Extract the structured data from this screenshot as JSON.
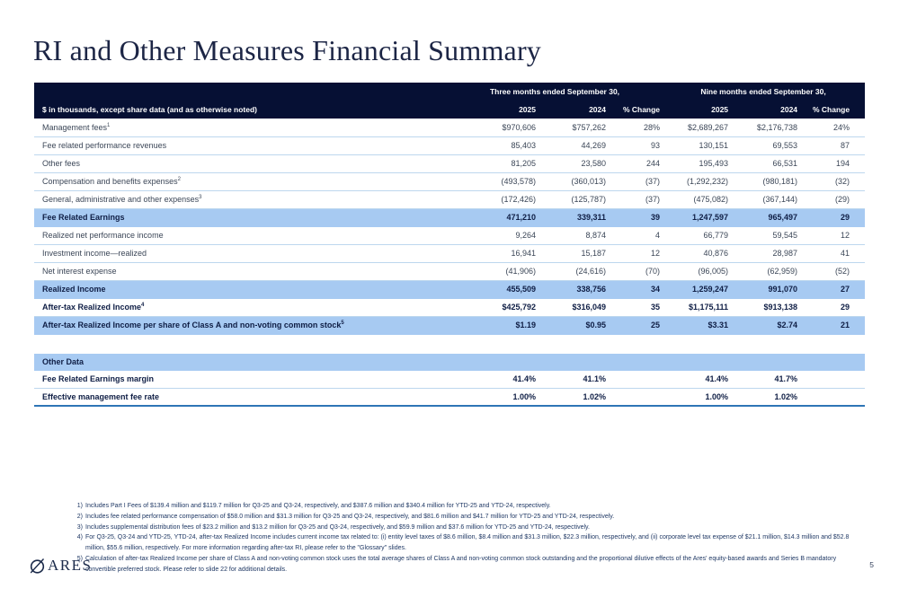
{
  "slide": {
    "title": "RI and Other Measures Financial Summary",
    "page_number": "5",
    "logo_text": "ARES"
  },
  "table": {
    "corner_label": "$ in thousands, except share data (and as otherwise noted)",
    "group_headers": [
      "Three months ended September 30,",
      "Nine months ended September 30,"
    ],
    "column_headers": [
      "2025",
      "2024",
      "% Change",
      "2025",
      "2024",
      "% Change"
    ],
    "rows": [
      {
        "label": "Management fees",
        "sup": "1",
        "style": "normal",
        "values": [
          "$970,606",
          "$757,262",
          "28%",
          "$2,689,267",
          "$2,176,738",
          "24%"
        ]
      },
      {
        "label": "Fee related performance revenues",
        "sup": "",
        "style": "normal",
        "values": [
          "85,403",
          "44,269",
          "93",
          "130,151",
          "69,553",
          "87"
        ]
      },
      {
        "label": "Other fees",
        "sup": "",
        "style": "normal",
        "values": [
          "81,205",
          "23,580",
          "244",
          "195,493",
          "66,531",
          "194"
        ]
      },
      {
        "label": "Compensation and benefits expenses",
        "sup": "2",
        "style": "normal",
        "values": [
          "(493,578)",
          "(360,013)",
          "(37)",
          "(1,292,232)",
          "(980,181)",
          "(32)"
        ]
      },
      {
        "label": "General, administrative and other expenses",
        "sup": "3",
        "style": "normal",
        "values": [
          "(172,426)",
          "(125,787)",
          "(37)",
          "(475,082)",
          "(367,144)",
          "(29)"
        ]
      },
      {
        "label": "Fee Related Earnings",
        "sup": "",
        "style": "highlight",
        "values": [
          "471,210",
          "339,311",
          "39",
          "1,247,597",
          "965,497",
          "29"
        ]
      },
      {
        "label": "Realized net performance income",
        "sup": "",
        "style": "normal",
        "values": [
          "9,264",
          "8,874",
          "4",
          "66,779",
          "59,545",
          "12"
        ]
      },
      {
        "label": "Investment income—realized",
        "sup": "",
        "style": "normal",
        "values": [
          "16,941",
          "15,187",
          "12",
          "40,876",
          "28,987",
          "41"
        ]
      },
      {
        "label": "Net interest expense",
        "sup": "",
        "style": "normal",
        "values": [
          "(41,906)",
          "(24,616)",
          "(70)",
          "(96,005)",
          "(62,959)",
          "(52)"
        ]
      },
      {
        "label": "Realized Income",
        "sup": "",
        "style": "highlight",
        "values": [
          "455,509",
          "338,756",
          "34",
          "1,259,247",
          "991,070",
          "27"
        ]
      },
      {
        "label": "After-tax Realized Income",
        "sup": "4",
        "style": "bold",
        "values": [
          "$425,792",
          "$316,049",
          "35",
          "$1,175,111",
          "$913,138",
          "29"
        ]
      },
      {
        "label": "After-tax Realized Income per share of Class A and non-voting common stock",
        "sup": "5",
        "style": "highlight",
        "values": [
          "$1.19",
          "$0.95",
          "25",
          "$3.31",
          "$2.74",
          "21"
        ]
      }
    ],
    "other_data": {
      "section_label": "Other Data",
      "rows": [
        {
          "label": "Fee Related Earnings margin",
          "values": [
            "41.4%",
            "41.1%",
            "",
            "41.4%",
            "41.7%",
            ""
          ]
        },
        {
          "label": "Effective management fee rate",
          "values": [
            "1.00%",
            "1.02%",
            "",
            "1.00%",
            "1.02%",
            ""
          ]
        }
      ]
    }
  },
  "footnotes": [
    {
      "num": "1)",
      "text": "Includes Part I Fees of $139.4 million and $119.7 million for Q3-25 and Q3-24, respectively, and $387.6 million and $340.4 million for YTD-25 and YTD-24, respectively."
    },
    {
      "num": "2)",
      "text": "Includes fee related performance compensation of $58.0 million and $31.3 million for Q3-25 and Q3-24, respectively, and $81.6 million and $41.7 million for YTD-25 and YTD-24, respectively."
    },
    {
      "num": "3)",
      "text": "Includes supplemental distribution fees of $23.2 million and $13.2 million for Q3-25 and Q3-24, respectively, and $59.9 million and $37.6 million for YTD-25 and YTD-24, respectively."
    },
    {
      "num": "4)",
      "text": "For Q3-25, Q3-24 and YTD-25, YTD-24, after-tax Realized Income includes current income tax related to: (i) entity level taxes of $8.6 million, $8.4 million and $31.3 million, $22.3 million, respectively, and (ii) corporate level tax expense of $21.1 million, $14.3 million and $52.8 million, $55.6 million, respectively. For more information regarding after-tax RI, please refer to the \"Glossary\" slides."
    },
    {
      "num": "5)",
      "text": "Calculation of after-tax Realized Income per share of Class A and non-voting common stock uses the total average shares of Class A and non-voting common stock outstanding and the proportional dilutive effects of the Ares' equity-based awards and Series B mandatory convertible preferred stock. Please refer to slide 22 for additional details."
    }
  ],
  "colors": {
    "header_bg": "#061034",
    "highlight_row_bg": "#a7caf2",
    "row_divider": "#bdd7ee",
    "table_bottom_border": "#2e75b6",
    "title_text": "#1c2545",
    "footnote_text": "#1f3864"
  }
}
